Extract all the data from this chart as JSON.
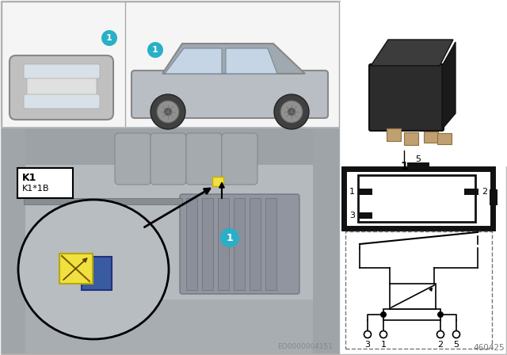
{
  "bg_color": "#ffffff",
  "teal_color": "#29afc7",
  "yellow_color": "#f0e040",
  "blue_color": "#3a5ba0",
  "part_number": "EO0000004151",
  "ref_number": "460425",
  "label_k1": "K1",
  "label_k1b": "K1*1B"
}
